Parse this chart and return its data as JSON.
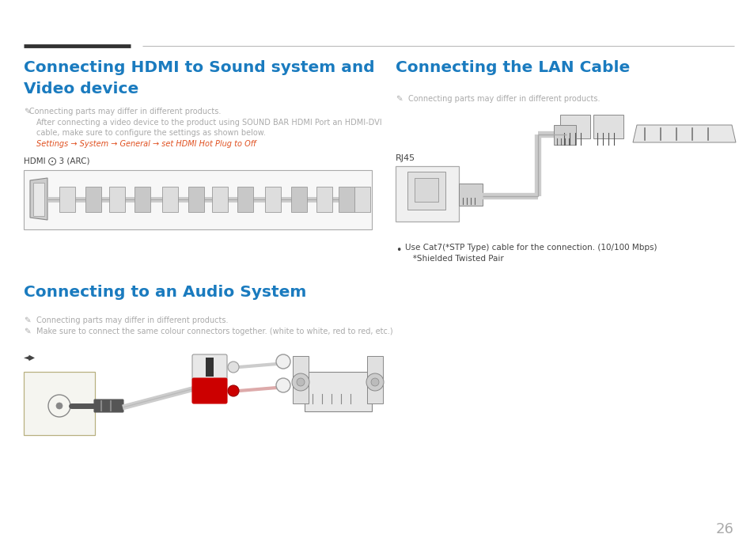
{
  "bg_color": "#ffffff",
  "title_color": "#1a7bbf",
  "note_color": "#aaaaaa",
  "dark_text": "#444444",
  "red_color": "#e05020",
  "page_num": "26",
  "s1_line1": "Connecting HDMI to Sound system and",
  "s1_line2": "Video device",
  "s2_title": "Connecting to an Audio System",
  "s3_title": "Connecting the LAN Cable",
  "note_differ": "Connecting parts may differ in different products.",
  "note_hdmi2": "After connecting a video device to the product using SOUND BAR HDMI Port an HDMI-DVI",
  "note_hdmi3": "cable, make sure to configure the settings as shown below.",
  "settings_normal": "Settings → System → General → set ",
  "settings_bold": "HDMI Hot Plug",
  "settings_end": " to ",
  "settings_off": "Off",
  "hdmi_label": "HDMI ⨀ 3 (ARC)",
  "note_audio2": "Make sure to connect the same colour connectors together. (white to white, red to red, etc.)",
  "rj45_label": "RJ45",
  "lan_bullet1": "Use Cat7(*STP Type) cable for the connection. (10/100 Mbps)",
  "lan_bullet2": "   *Shielded Twisted Pair"
}
